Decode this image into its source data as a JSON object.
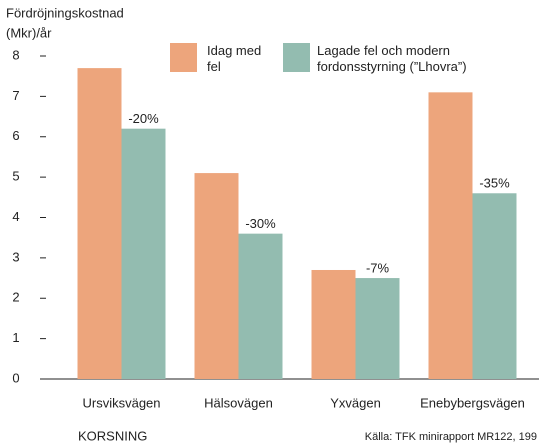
{
  "chart_data": {
    "type": "bar",
    "y_label": [
      "Fördröjningskostnad",
      "(Mkr)/år"
    ],
    "x_label": "KORSNING",
    "source": "Källa: TFK minirapport MR122, 199",
    "categories": [
      "Ursviksvägen",
      "Hälsovägen",
      "Yxvägen",
      "Enebybergsvägen"
    ],
    "series": [
      {
        "name": "Idag med fel",
        "color": "#eda57c",
        "values": [
          7.7,
          5.1,
          2.7,
          7.1
        ]
      },
      {
        "name": "Lagade fel och modern fordonsstyrning (”Lhovra”)",
        "color": "#93bcb0",
        "values": [
          6.2,
          3.6,
          2.5,
          4.6
        ]
      }
    ],
    "annotations": [
      "-20%",
      "-30%",
      "-7%",
      "-35%"
    ],
    "ylim": [
      0,
      8
    ],
    "yticks": [
      0,
      1,
      2,
      3,
      4,
      5,
      6,
      7,
      8
    ],
    "grid": false
  }
}
